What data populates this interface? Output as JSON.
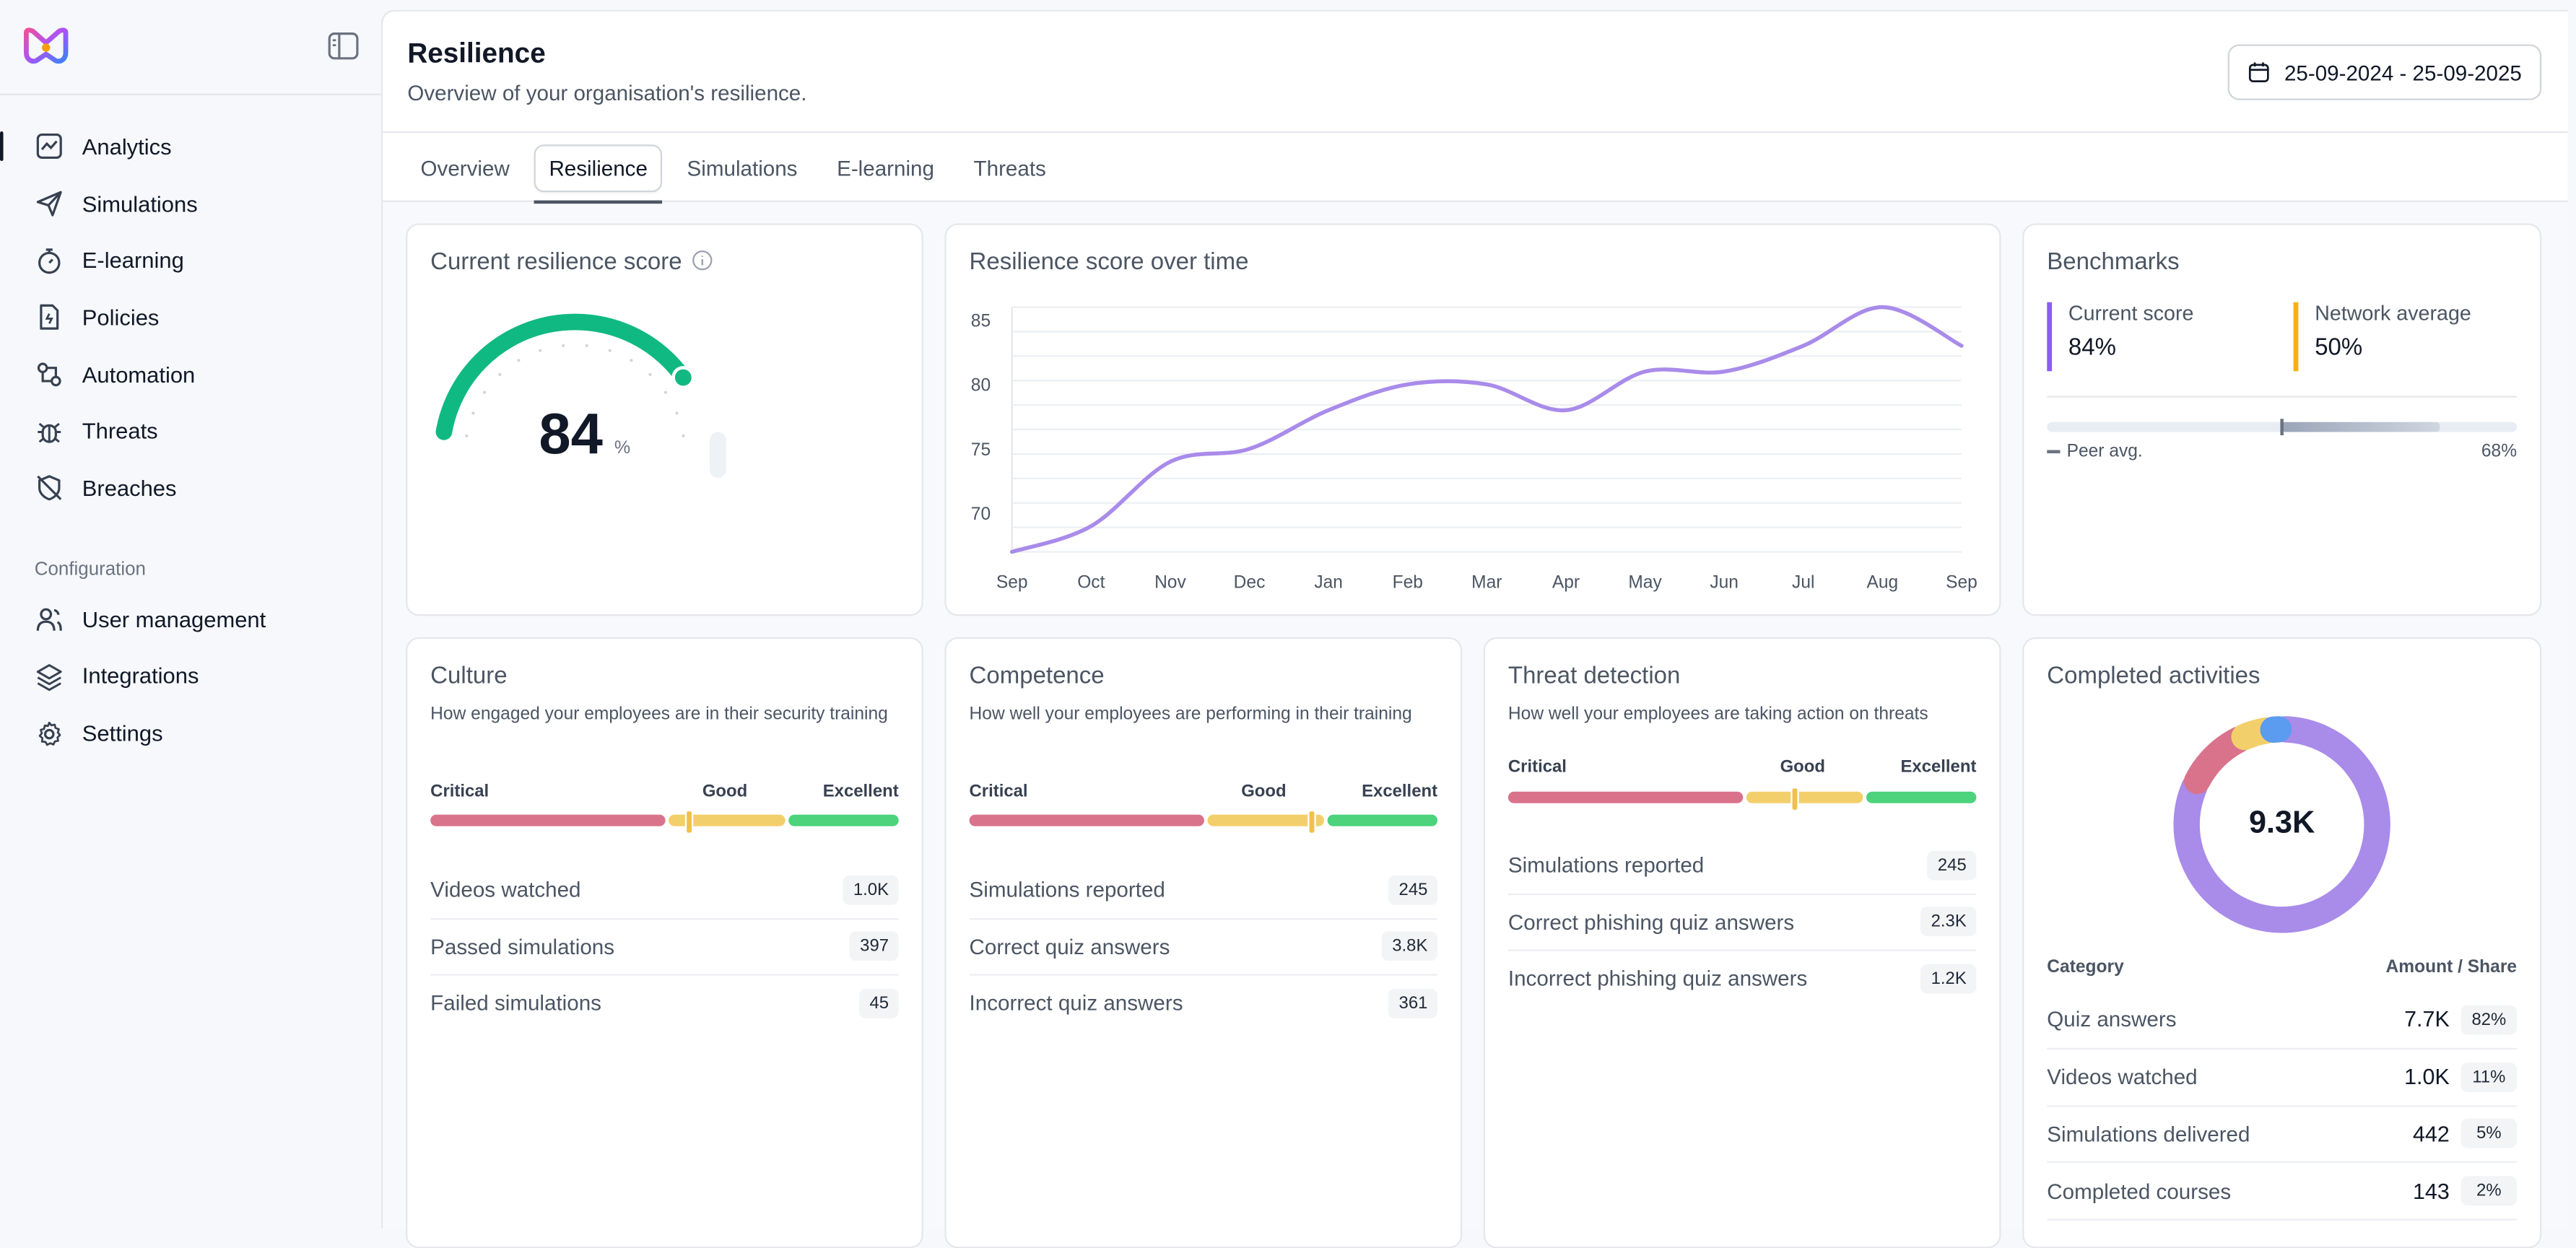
{
  "app": {
    "brand_color": "#8b5cf6"
  },
  "sidebar": {
    "nav": [
      {
        "label": "Analytics",
        "icon": "analytics-icon",
        "active": true
      },
      {
        "label": "Simulations",
        "icon": "paper-plane-icon"
      },
      {
        "label": "E-learning",
        "icon": "stopwatch-icon"
      },
      {
        "label": "Policies",
        "icon": "file-icon"
      },
      {
        "label": "Automation",
        "icon": "automation-icon"
      },
      {
        "label": "Threats",
        "icon": "bug-icon"
      },
      {
        "label": "Breaches",
        "icon": "shield-off-icon"
      }
    ],
    "config_label": "Configuration",
    "config": [
      {
        "label": "User management",
        "icon": "users-icon"
      },
      {
        "label": "Integrations",
        "icon": "layers-icon"
      },
      {
        "label": "Settings",
        "icon": "gear-icon"
      }
    ]
  },
  "header": {
    "title": "Resilience",
    "subtitle": "Overview of your organisation's resilience.",
    "date_range": "25-09-2024 - 25-09-2025"
  },
  "tabs": [
    "Overview",
    "Resilience",
    "Simulations",
    "E-learning",
    "Threats"
  ],
  "active_tab": "Resilience",
  "score_card": {
    "title": "Current resilience score",
    "value": "84",
    "unit": "%",
    "gauge_fraction": 0.84,
    "color": "#10b981"
  },
  "chart_data": {
    "type": "line",
    "title": "Resilience score over time",
    "categories": [
      "Sep",
      "Oct",
      "Nov",
      "Dec",
      "Jan",
      "Feb",
      "Mar",
      "Apr",
      "May",
      "Jun",
      "Jul",
      "Aug",
      "Sep"
    ],
    "yticks": [
      70,
      75,
      80,
      85
    ],
    "ylim": [
      67,
      86
    ],
    "series": [
      {
        "values": [
          67,
          69,
          74,
          75,
          78,
          80,
          80,
          78,
          81,
          81,
          83,
          86,
          83
        ],
        "color": "#a98bea"
      }
    ],
    "grid": true
  },
  "benchmarks": {
    "title": "Benchmarks",
    "current_label": "Current score",
    "current_value": "84%",
    "current_color": "#8b5cf6",
    "network_label": "Network average",
    "network_value": "50%",
    "network_color": "#f5b014",
    "peer_label": "Peer avg.",
    "peer_value": "68%"
  },
  "scale_labels": {
    "critical": "Critical",
    "good": "Good",
    "excellent": "Excellent"
  },
  "colors": {
    "critical": "#d9738c",
    "good": "#f3cf6b",
    "excellent": "#4cd37c"
  },
  "culture": {
    "title": "Culture",
    "desc": "How engaged your employees are in their security training",
    "marker_fraction": 0.55,
    "metrics": [
      {
        "label": "Videos watched",
        "value": "1.0K"
      },
      {
        "label": "Passed simulations",
        "value": "397"
      },
      {
        "label": "Failed simulations",
        "value": "45"
      }
    ]
  },
  "competence": {
    "title": "Competence",
    "desc": "How well your employees are performing in their training",
    "marker_fraction": 0.73,
    "metrics": [
      {
        "label": "Simulations reported",
        "value": "245"
      },
      {
        "label": "Correct quiz answers",
        "value": "3.8K"
      },
      {
        "label": "Incorrect quiz answers",
        "value": "361"
      }
    ]
  },
  "threat": {
    "title": "Threat detection",
    "desc": "How well your employees are taking action on threats",
    "marker_fraction": 0.61,
    "metrics": [
      {
        "label": "Simulations reported",
        "value": "245"
      },
      {
        "label": "Correct phishing quiz answers",
        "value": "2.3K"
      },
      {
        "label": "Incorrect phishing quiz answers",
        "value": "1.2K"
      }
    ]
  },
  "activities": {
    "title": "Completed activities",
    "total": "9.3K",
    "col_category": "Category",
    "col_amount": "Amount / Share",
    "rows": [
      {
        "name": "Quiz answers",
        "amount": "7.7K",
        "share": "82%",
        "color": "#a98bea"
      },
      {
        "name": "Videos watched",
        "amount": "1.0K",
        "share": "11%",
        "color": "#d9738c"
      },
      {
        "name": "Simulations delivered",
        "amount": "442",
        "share": "5%",
        "color": "#f3cf6b"
      },
      {
        "name": "Completed courses",
        "amount": "143",
        "share": "2%",
        "color": "#5b9bf0"
      }
    ]
  }
}
